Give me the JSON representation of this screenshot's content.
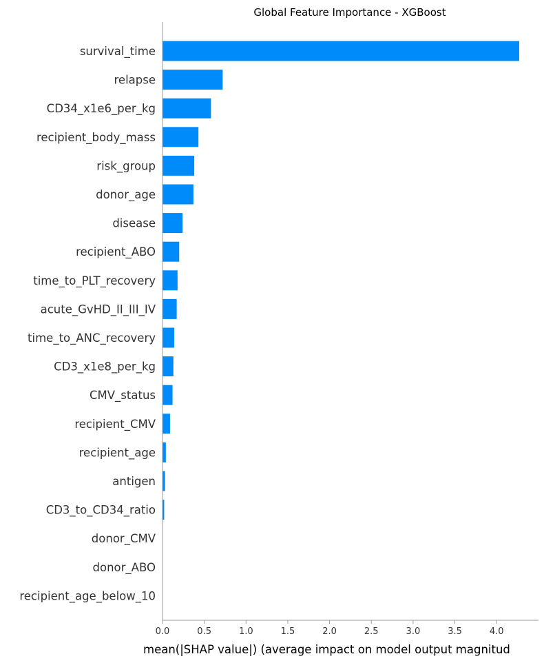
{
  "chart_data": {
    "type": "bar",
    "orientation": "horizontal",
    "title": "Global Feature Importance - XGBoost",
    "xlabel": "mean(|SHAP value|) (average impact on model output magnitud",
    "ylabel": "",
    "xlim": [
      0,
      4.45
    ],
    "xticks": [
      "0.0",
      "0.5",
      "1.0",
      "1.5",
      "2.0",
      "2.5",
      "3.0",
      "3.5",
      "4.0"
    ],
    "grid": false,
    "bar_color": "#008bfb",
    "categories": [
      "survival_time",
      "relapse",
      "CD34_x1e6_per_kg",
      "recipient_body_mass",
      "risk_group",
      "donor_age",
      "disease",
      "recipient_ABO",
      "time_to_PLT_recovery",
      "acute_GvHD_II_III_IV",
      "time_to_ANC_recovery",
      "CD3_x1e8_per_kg",
      "CMV_status",
      "recipient_CMV",
      "recipient_age",
      "antigen",
      "CD3_to_CD34_ratio",
      "donor_CMV",
      "donor_ABO",
      "recipient_age_below_10"
    ],
    "values": [
      4.27,
      0.72,
      0.58,
      0.43,
      0.38,
      0.37,
      0.24,
      0.2,
      0.18,
      0.17,
      0.14,
      0.13,
      0.12,
      0.09,
      0.04,
      0.03,
      0.02,
      0.0,
      0.0,
      0.0
    ]
  }
}
